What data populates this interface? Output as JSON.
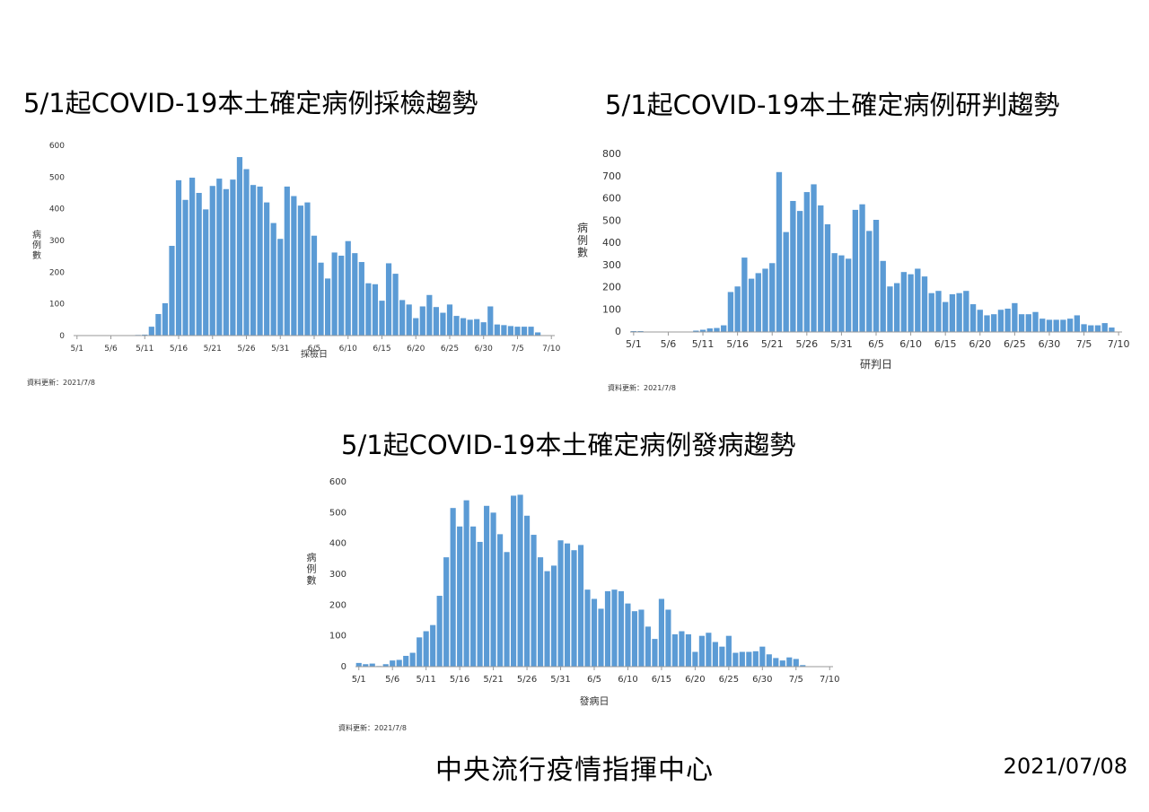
{
  "footer": {
    "organization": "中央流行疫情指揮中心",
    "date": "2021/07/08"
  },
  "colors": {
    "bar": "#5b9bd5",
    "axis": "#999999"
  },
  "chart_data": [
    {
      "type": "bar",
      "title": "5/1起COVID-19本土確定病例採檢趨勢",
      "xlabel": "採檢日",
      "ylabel": "病例數",
      "ylim": [
        0,
        600
      ],
      "yticks": [
        0,
        100,
        200,
        300,
        400,
        500,
        600
      ],
      "xticks": [
        "5/1",
        "5/6",
        "5/11",
        "5/16",
        "5/21",
        "5/26",
        "5/31",
        "6/5",
        "6/10",
        "6/15",
        "6/20",
        "6/25",
        "6/30",
        "7/5",
        "7/10"
      ],
      "categories": [
        "5/1",
        "5/2",
        "5/3",
        "5/4",
        "5/5",
        "5/6",
        "5/7",
        "5/8",
        "5/9",
        "5/10",
        "5/11",
        "5/12",
        "5/13",
        "5/14",
        "5/15",
        "5/16",
        "5/17",
        "5/18",
        "5/19",
        "5/20",
        "5/21",
        "5/22",
        "5/23",
        "5/24",
        "5/25",
        "5/26",
        "5/27",
        "5/28",
        "5/29",
        "5/30",
        "5/31",
        "6/1",
        "6/2",
        "6/3",
        "6/4",
        "6/5",
        "6/6",
        "6/7",
        "6/8",
        "6/9",
        "6/10",
        "6/11",
        "6/12",
        "6/13",
        "6/14",
        "6/15",
        "6/16",
        "6/17",
        "6/18",
        "6/19",
        "6/20",
        "6/21",
        "6/22",
        "6/23",
        "6/24",
        "6/25",
        "6/26",
        "6/27",
        "6/28",
        "6/29",
        "6/30",
        "7/1",
        "7/2",
        "7/3",
        "7/4",
        "7/5",
        "7/6",
        "7/7",
        "7/8",
        "7/9",
        "7/10"
      ],
      "values": [
        0,
        0,
        0,
        0,
        0,
        0,
        0,
        0,
        0,
        2,
        3,
        28,
        68,
        102,
        283,
        490,
        428,
        498,
        450,
        398,
        472,
        495,
        462,
        492,
        563,
        525,
        475,
        470,
        420,
        355,
        305,
        470,
        440,
        410,
        420,
        315,
        230,
        180,
        262,
        252,
        298,
        260,
        232,
        165,
        162,
        110,
        228,
        195,
        112,
        98,
        55,
        92,
        128,
        90,
        72,
        98,
        62,
        55,
        50,
        52,
        42,
        92,
        35,
        33,
        30,
        28,
        28,
        28,
        10,
        0,
        0
      ],
      "update_note": "資料更新：2021/7/8"
    },
    {
      "type": "bar",
      "title": "5/1起COVID-19本土確定病例研判趨勢",
      "xlabel": "研判日",
      "ylabel": "病例數",
      "ylim": [
        0,
        800
      ],
      "yticks": [
        0,
        100,
        200,
        300,
        400,
        500,
        600,
        700,
        800
      ],
      "xticks": [
        "5/1",
        "5/6",
        "5/11",
        "5/16",
        "5/21",
        "5/26",
        "5/31",
        "6/5",
        "6/10",
        "6/15",
        "6/20",
        "6/25",
        "6/30",
        "7/5",
        "7/10"
      ],
      "categories": [
        "5/1",
        "5/2",
        "5/3",
        "5/4",
        "5/5",
        "5/6",
        "5/7",
        "5/8",
        "5/9",
        "5/10",
        "5/11",
        "5/12",
        "5/13",
        "5/14",
        "5/15",
        "5/16",
        "5/17",
        "5/18",
        "5/19",
        "5/20",
        "5/21",
        "5/22",
        "5/23",
        "5/24",
        "5/25",
        "5/26",
        "5/27",
        "5/28",
        "5/29",
        "5/30",
        "5/31",
        "6/1",
        "6/2",
        "6/3",
        "6/4",
        "6/5",
        "6/6",
        "6/7",
        "6/8",
        "6/9",
        "6/10",
        "6/11",
        "6/12",
        "6/13",
        "6/14",
        "6/15",
        "6/16",
        "6/17",
        "6/18",
        "6/19",
        "6/20",
        "6/21",
        "6/22",
        "6/23",
        "6/24",
        "6/25",
        "6/26",
        "6/27",
        "6/28",
        "6/29",
        "6/30",
        "7/1",
        "7/2",
        "7/3",
        "7/4",
        "7/5",
        "7/6",
        "7/7",
        "7/8",
        "7/9",
        "7/10"
      ],
      "values": [
        4,
        4,
        2,
        2,
        2,
        2,
        2,
        2,
        2,
        6,
        10,
        16,
        18,
        30,
        180,
        205,
        335,
        240,
        265,
        285,
        310,
        720,
        450,
        590,
        545,
        630,
        665,
        570,
        485,
        355,
        345,
        330,
        550,
        575,
        455,
        505,
        320,
        205,
        220,
        270,
        260,
        285,
        250,
        175,
        185,
        135,
        170,
        175,
        185,
        125,
        100,
        75,
        80,
        100,
        105,
        130,
        80,
        80,
        90,
        60,
        55,
        55,
        55,
        60,
        75,
        35,
        30,
        30,
        40,
        20,
        0
      ],
      "update_note": "資料更新：2021/7/8"
    },
    {
      "type": "bar",
      "title": "5/1起COVID-19本土確定病例發病趨勢",
      "xlabel": "發病日",
      "ylabel": "病例數",
      "ylim": [
        0,
        600
      ],
      "yticks": [
        0,
        100,
        200,
        300,
        400,
        500,
        600
      ],
      "xticks": [
        "5/1",
        "5/6",
        "5/11",
        "5/16",
        "5/21",
        "5/26",
        "5/31",
        "6/5",
        "6/10",
        "6/15",
        "6/20",
        "6/25",
        "6/30",
        "7/5",
        "7/10"
      ],
      "categories": [
        "5/1",
        "5/2",
        "5/3",
        "5/4",
        "5/5",
        "5/6",
        "5/7",
        "5/8",
        "5/9",
        "5/10",
        "5/11",
        "5/12",
        "5/13",
        "5/14",
        "5/15",
        "5/16",
        "5/17",
        "5/18",
        "5/19",
        "5/20",
        "5/21",
        "5/22",
        "5/23",
        "5/24",
        "5/25",
        "5/26",
        "5/27",
        "5/28",
        "5/29",
        "5/30",
        "5/31",
        "6/1",
        "6/2",
        "6/3",
        "6/4",
        "6/5",
        "6/6",
        "6/7",
        "6/8",
        "6/9",
        "6/10",
        "6/11",
        "6/12",
        "6/13",
        "6/14",
        "6/15",
        "6/16",
        "6/17",
        "6/18",
        "6/19",
        "6/20",
        "6/21",
        "6/22",
        "6/23",
        "6/24",
        "6/25",
        "6/26",
        "6/27",
        "6/28",
        "6/29",
        "6/30",
        "7/1",
        "7/2",
        "7/3",
        "7/4",
        "7/5",
        "7/6",
        "7/7",
        "7/8",
        "7/9",
        "7/10"
      ],
      "values": [
        12,
        8,
        10,
        2,
        8,
        20,
        22,
        35,
        45,
        95,
        115,
        135,
        230,
        355,
        515,
        455,
        540,
        455,
        405,
        522,
        500,
        430,
        372,
        555,
        558,
        490,
        428,
        355,
        310,
        328,
        410,
        400,
        378,
        395,
        250,
        220,
        188,
        245,
        250,
        245,
        205,
        180,
        185,
        130,
        90,
        220,
        185,
        105,
        115,
        105,
        48,
        100,
        110,
        80,
        65,
        100,
        45,
        48,
        48,
        50,
        65,
        40,
        28,
        20,
        30,
        25,
        5,
        0,
        0,
        0,
        0
      ],
      "update_note": "資料更新：2021/7/8"
    }
  ]
}
